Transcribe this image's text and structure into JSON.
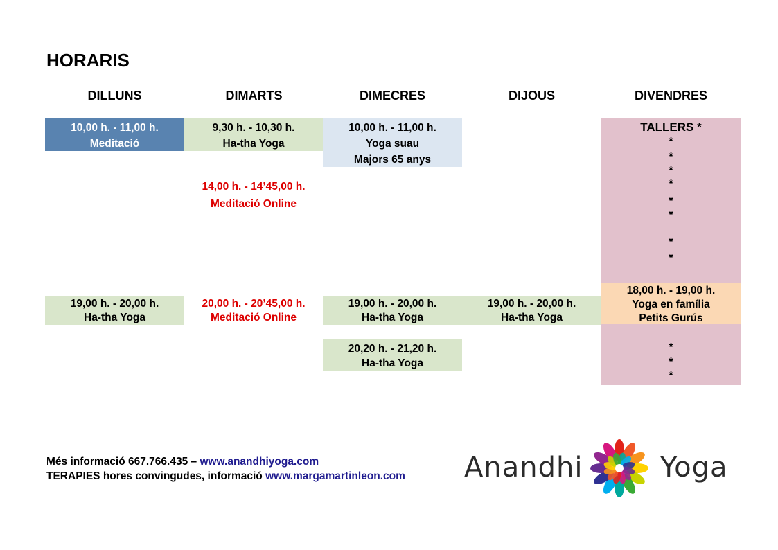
{
  "title": "HORARIS",
  "days": [
    "DILLUNS",
    "DIMARTS",
    "DIMECRES",
    "DIJOUS",
    "DIVENDRES"
  ],
  "colors": {
    "meditacio_blue": "#5983b0",
    "hatha_green": "#d9e6cb",
    "suau_blue": "#dce6f1",
    "tallers_pink": "#e2c1cc",
    "familia_orange": "#fbd8b4",
    "online_red": "#dd0000",
    "link_blue": "#1f1b8f"
  },
  "schedule": {
    "mon_morning": {
      "time": "10,00 h. - 11,00 h.",
      "name": "Meditació"
    },
    "tue_morning": {
      "time": "9,30 h. - 10,30 h.",
      "name": "Ha-tha Yoga"
    },
    "wed_morning": {
      "time": "10,00 h. - 11,00 h.",
      "name": "Yoga suau",
      "note": "Majors 65 anys"
    },
    "tue_midday": {
      "time": "14,00 h. - 14’45,00 h.",
      "name": "Meditació Online"
    },
    "mon_evening": {
      "time": "19,00 h. - 20,00 h.",
      "name": "Ha-tha Yoga"
    },
    "tue_evening": {
      "time": "20,00 h. - 20’45,00 h.",
      "name": "Meditació Online"
    },
    "wed_evening": {
      "time": "19,00 h. - 20,00 h.",
      "name": "Ha-tha Yoga"
    },
    "thu_evening": {
      "time": "19,00 h. - 20,00 h.",
      "name": "Ha-tha Yoga"
    },
    "wed_late": {
      "time": "20,20 h. - 21,20 h.",
      "name": "Ha-tha Yoga"
    },
    "fri_tallers": {
      "title": "TALLERS *",
      "star": "*"
    },
    "fri_familia": {
      "time": "18,00 h. - 19,00 h.",
      "name": "Yoga en família",
      "note": "Petits Gurús"
    }
  },
  "footer": {
    "line1_text": "Més informació 667.766.435 – ",
    "line1_link": "www.anandhiyoga.com",
    "line2_text": "TERAPIES hores convingudes, informació ",
    "line2_link": "www.margamartinleon.com"
  },
  "logo": {
    "word_left": "Anandhi",
    "word_right": "Yoga",
    "icon": "lotus-flower-icon"
  }
}
